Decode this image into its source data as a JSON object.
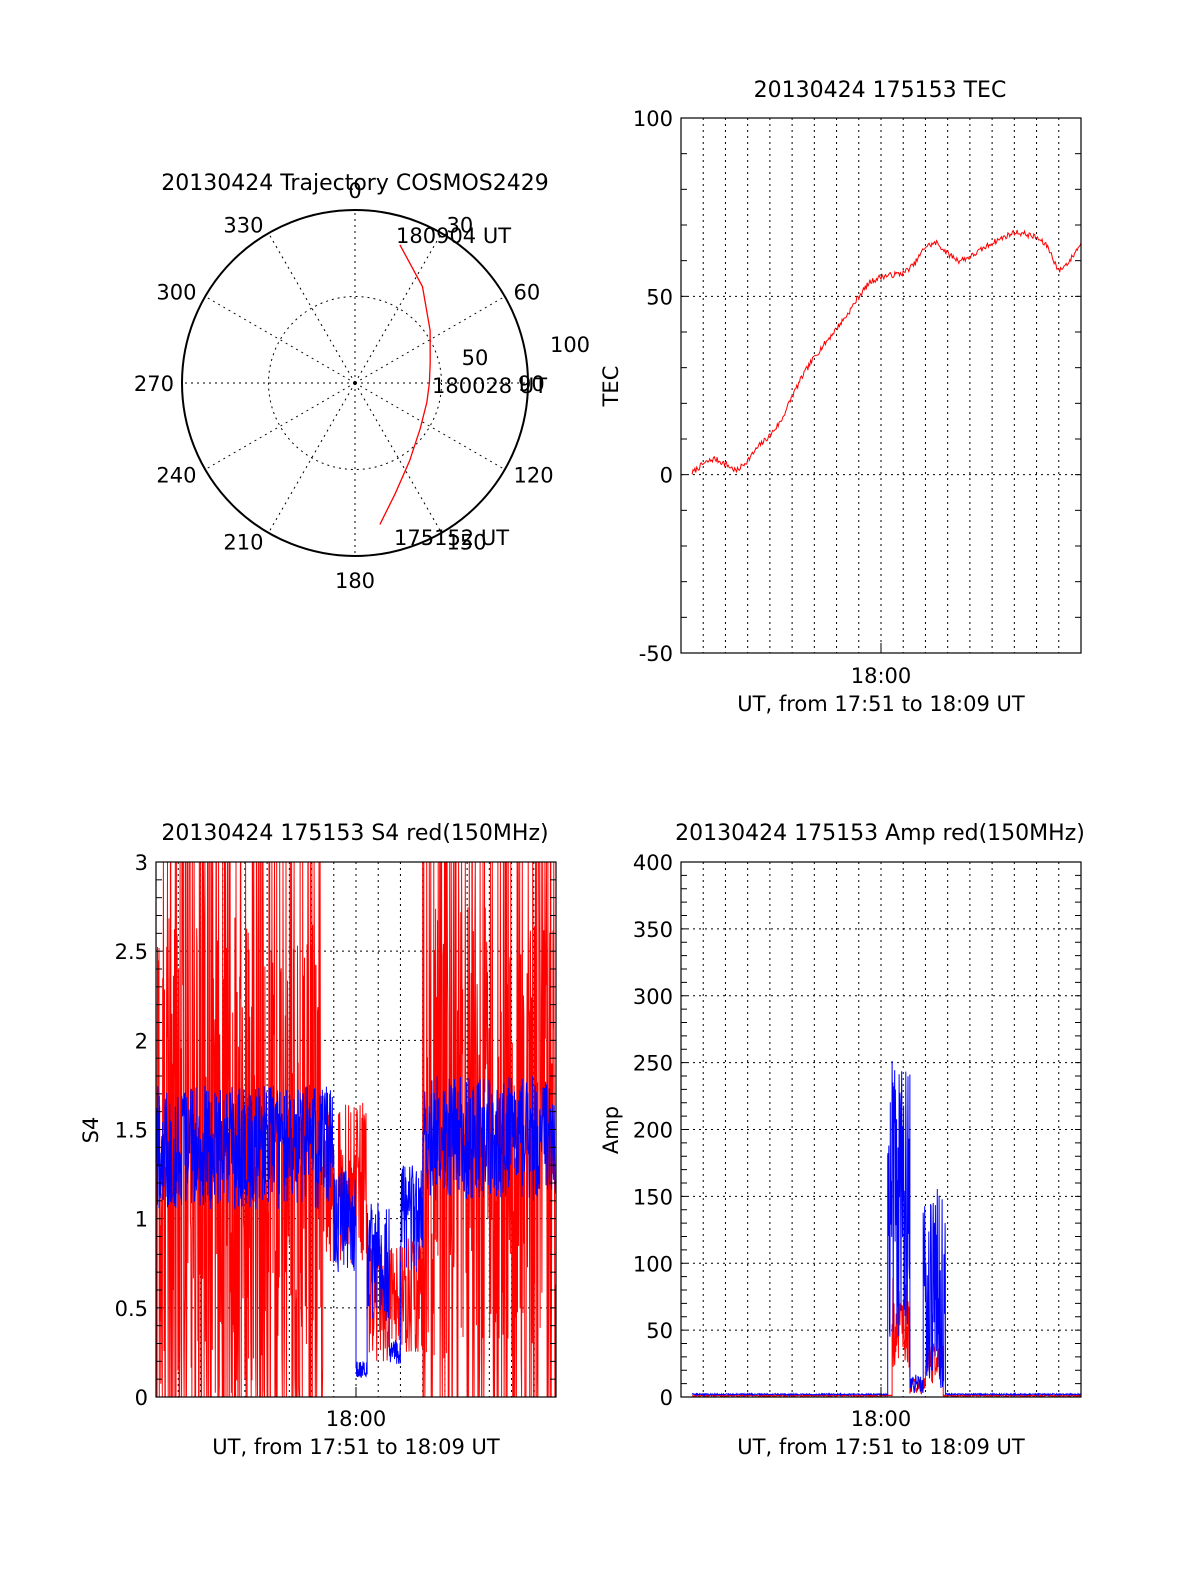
{
  "chart_data": [
    {
      "type": "polar",
      "title": "20130424 Trajectory COSMOS2429",
      "angle_ticks": [
        "0",
        "30",
        "60",
        "90",
        "120",
        "150",
        "180",
        "210",
        "240",
        "270",
        "300",
        "330"
      ],
      "radial_ticks": [
        "50",
        "100"
      ],
      "radial_range": [
        0,
        100
      ],
      "point_labels": {
        "end": "180904 UT",
        "middle": "180028 UT",
        "start": "175152 UT"
      },
      "series": [
        {
          "color": "#ff0000",
          "points": [
            {
              "az": 170,
              "r": 83
            },
            {
              "az": 160,
              "r": 68
            },
            {
              "az": 145,
              "r": 55
            },
            {
              "az": 125,
              "r": 46
            },
            {
              "az": 105,
              "r": 43
            },
            {
              "az": 90,
              "r": 43
            },
            {
              "az": 75,
              "r": 45
            },
            {
              "az": 55,
              "r": 53
            },
            {
              "az": 35,
              "r": 68
            },
            {
              "az": 18,
              "r": 84
            }
          ]
        }
      ]
    },
    {
      "type": "line",
      "title": "20130424 175153 TEC",
      "xlabel": "UT, from 17:51 to 18:09 UT",
      "ylabel": "TEC",
      "x_tick_label": "18:00",
      "y_ticks": [
        "-50",
        "0",
        "50",
        "100"
      ],
      "ylim": [
        -50,
        100
      ],
      "xlim_minutes": [
        0,
        18
      ],
      "series": [
        {
          "color": "#ff0000",
          "x": [
            0.5,
            1.0,
            1.5,
            2.0,
            2.5,
            3.0,
            3.5,
            4.0,
            4.5,
            5.0,
            5.5,
            6.0,
            6.5,
            7.0,
            7.5,
            8.0,
            8.5,
            9.0,
            9.5,
            10.0,
            10.5,
            11.0,
            11.5,
            12.0,
            12.5,
            13.0,
            13.5,
            14.0,
            14.5,
            15.0,
            15.5,
            16.0,
            16.5,
            17.0,
            17.5,
            18.0
          ],
          "y": [
            0.5,
            3,
            4.5,
            3,
            1,
            4,
            8,
            11,
            15,
            22,
            28,
            33,
            37,
            41,
            45,
            50,
            54,
            55.5,
            56,
            56.5,
            59,
            64,
            65,
            62,
            60,
            61,
            63,
            65,
            66.5,
            68,
            67.5,
            66.5,
            64,
            57,
            60,
            65
          ]
        }
      ]
    },
    {
      "type": "line",
      "title": "20130424 175153 S4 red(150MHz)",
      "xlabel": "UT, from 17:51 to 18:09 UT",
      "ylabel": "S4",
      "x_tick_label": "18:00",
      "y_ticks": [
        "0",
        "0.5",
        "1",
        "1.5",
        "2",
        "2.5",
        "3"
      ],
      "ylim": [
        0,
        3
      ],
      "xlim_minutes": [
        0,
        18
      ],
      "series": [
        {
          "color": "#ff0000",
          "segments": [
            {
              "x_range": [
                0.0,
                7.5
              ],
              "mode": "spikes",
              "base": 1.3,
              "spread": 1.4
            },
            {
              "x_range": [
                7.5,
                9.5
              ],
              "mode": "noise",
              "base": 1.2,
              "spread": 0.45
            },
            {
              "x_range": [
                9.5,
                12.0
              ],
              "mode": "noise",
              "base": 0.55,
              "spread": 0.35
            },
            {
              "x_range": [
                12.0,
                18.0
              ],
              "mode": "spikes",
              "base": 1.5,
              "spread": 1.3
            }
          ]
        },
        {
          "color": "#0000ff",
          "segments": [
            {
              "x_range": [
                0.0,
                8.0
              ],
              "mode": "noise",
              "base": 1.4,
              "spread": 0.35
            },
            {
              "x_range": [
                8.0,
                9.0
              ],
              "mode": "noise",
              "base": 1.0,
              "spread": 0.3
            },
            {
              "x_range": [
                9.0,
                9.5
              ],
              "mode": "noise",
              "base": 0.15,
              "spread": 0.05
            },
            {
              "x_range": [
                9.5,
                10.5
              ],
              "mode": "noise",
              "base": 0.75,
              "spread": 0.35
            },
            {
              "x_range": [
                10.5,
                11.0
              ],
              "mode": "noise",
              "base": 0.25,
              "spread": 0.08
            },
            {
              "x_range": [
                11.0,
                12.0
              ],
              "mode": "noise",
              "base": 1.0,
              "spread": 0.3
            },
            {
              "x_range": [
                12.0,
                18.0
              ],
              "mode": "noise",
              "base": 1.45,
              "spread": 0.35
            }
          ]
        }
      ]
    },
    {
      "type": "line",
      "title": "20130424 175153 Amp red(150MHz)",
      "xlabel": "UT, from 17:51 to 18:09 UT",
      "ylabel": "Amp",
      "x_tick_label": "18:00",
      "y_ticks": [
        "0",
        "50",
        "100",
        "150",
        "200",
        "250",
        "300",
        "350",
        "400"
      ],
      "ylim": [
        0,
        400
      ],
      "xlim_minutes": [
        0,
        18
      ],
      "series": [
        {
          "color": "#ff0000",
          "segments": [
            {
              "x_range": [
                0.5,
                9.5
              ],
              "mode": "flat",
              "base": 1,
              "spread": 1
            },
            {
              "x_range": [
                9.5,
                10.3
              ],
              "mode": "noise",
              "base": 55,
              "spread": 35
            },
            {
              "x_range": [
                10.3,
                11.0
              ],
              "mode": "noise",
              "base": 8,
              "spread": 6
            },
            {
              "x_range": [
                11.0,
                11.8
              ],
              "mode": "noise",
              "base": 25,
              "spread": 15
            },
            {
              "x_range": [
                11.8,
                18.0
              ],
              "mode": "flat",
              "base": 1,
              "spread": 1
            }
          ]
        },
        {
          "color": "#0000ff",
          "segments": [
            {
              "x_range": [
                0.5,
                9.3
              ],
              "mode": "flat",
              "base": 2,
              "spread": 1
            },
            {
              "x_range": [
                9.3,
                10.3
              ],
              "mode": "noise",
              "base": 150,
              "spread": 110
            },
            {
              "x_range": [
                10.3,
                10.9
              ],
              "mode": "noise",
              "base": 10,
              "spread": 8
            },
            {
              "x_range": [
                10.9,
                11.9
              ],
              "mode": "noise",
              "base": 80,
              "spread": 80
            },
            {
              "x_range": [
                11.9,
                18.0
              ],
              "mode": "flat",
              "base": 2,
              "spread": 1
            }
          ]
        }
      ]
    }
  ]
}
